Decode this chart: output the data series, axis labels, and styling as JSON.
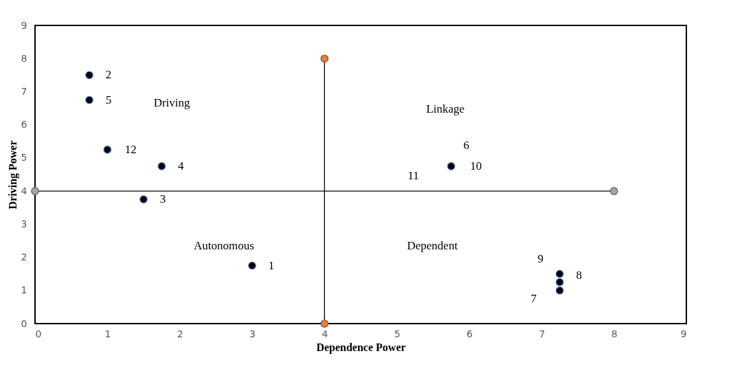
{
  "chart_data": {
    "type": "scatter",
    "xlabel": "Dependence Power",
    "ylabel": "Driving Power",
    "xlim": [
      0,
      9
    ],
    "ylim": [
      0,
      9
    ],
    "xticks": [
      0,
      1,
      2,
      3,
      4,
      5,
      6,
      7,
      8,
      9
    ],
    "yticks": [
      0,
      1,
      2,
      3,
      4,
      5,
      6,
      7,
      8,
      9
    ],
    "grid": false,
    "series": [
      {
        "type": "line",
        "x": [
          4,
          4
        ],
        "values": [
          0,
          8
        ],
        "color": "#000000"
      },
      {
        "type": "line",
        "x": [
          0,
          8
        ],
        "values": [
          4,
          4
        ],
        "color": "#000000"
      },
      {
        "type": "scatter",
        "x": [
          4,
          4
        ],
        "values": [
          8,
          0
        ],
        "color": "#ed7d31"
      },
      {
        "type": "scatter",
        "x": [
          0,
          8
        ],
        "values": [
          4,
          4
        ],
        "color": "#a5a5a5"
      },
      {
        "type": "scatter",
        "x": [
          3,
          0.75,
          1.5,
          1.75,
          0.75,
          5.75,
          7.25,
          7.25,
          7.25,
          1
        ],
        "values": [
          1.75,
          7.5,
          3.75,
          4.75,
          6.75,
          4.75,
          1,
          1.25,
          1.5,
          5.25
        ],
        "color": "#000000"
      }
    ],
    "annotations": [
      {
        "text": "1",
        "x": 3,
        "y": 1.75
      },
      {
        "text": "2",
        "x": 0.75,
        "y": 7.5
      },
      {
        "text": "3",
        "x": 1.5,
        "y": 3.75
      },
      {
        "text": "4",
        "x": 1.75,
        "y": 4.75
      },
      {
        "text": "5",
        "x": 0.75,
        "y": 6.75
      },
      {
        "text": "6",
        "x": 5.75,
        "y": 4.75
      },
      {
        "text": "10",
        "x": 5.75,
        "y": 4.75
      },
      {
        "text": "11",
        "x": 5.75,
        "y": 4.75
      },
      {
        "text": "7",
        "x": 7.25,
        "y": 1
      },
      {
        "text": "8",
        "x": 7.25,
        "y": 1.25
      },
      {
        "text": "9",
        "x": 7.25,
        "y": 1.5
      },
      {
        "text": "12",
        "x": 1,
        "y": 5.25
      },
      "Driving",
      "Linkage",
      "Autonomous",
      "Dependent"
    ]
  }
}
